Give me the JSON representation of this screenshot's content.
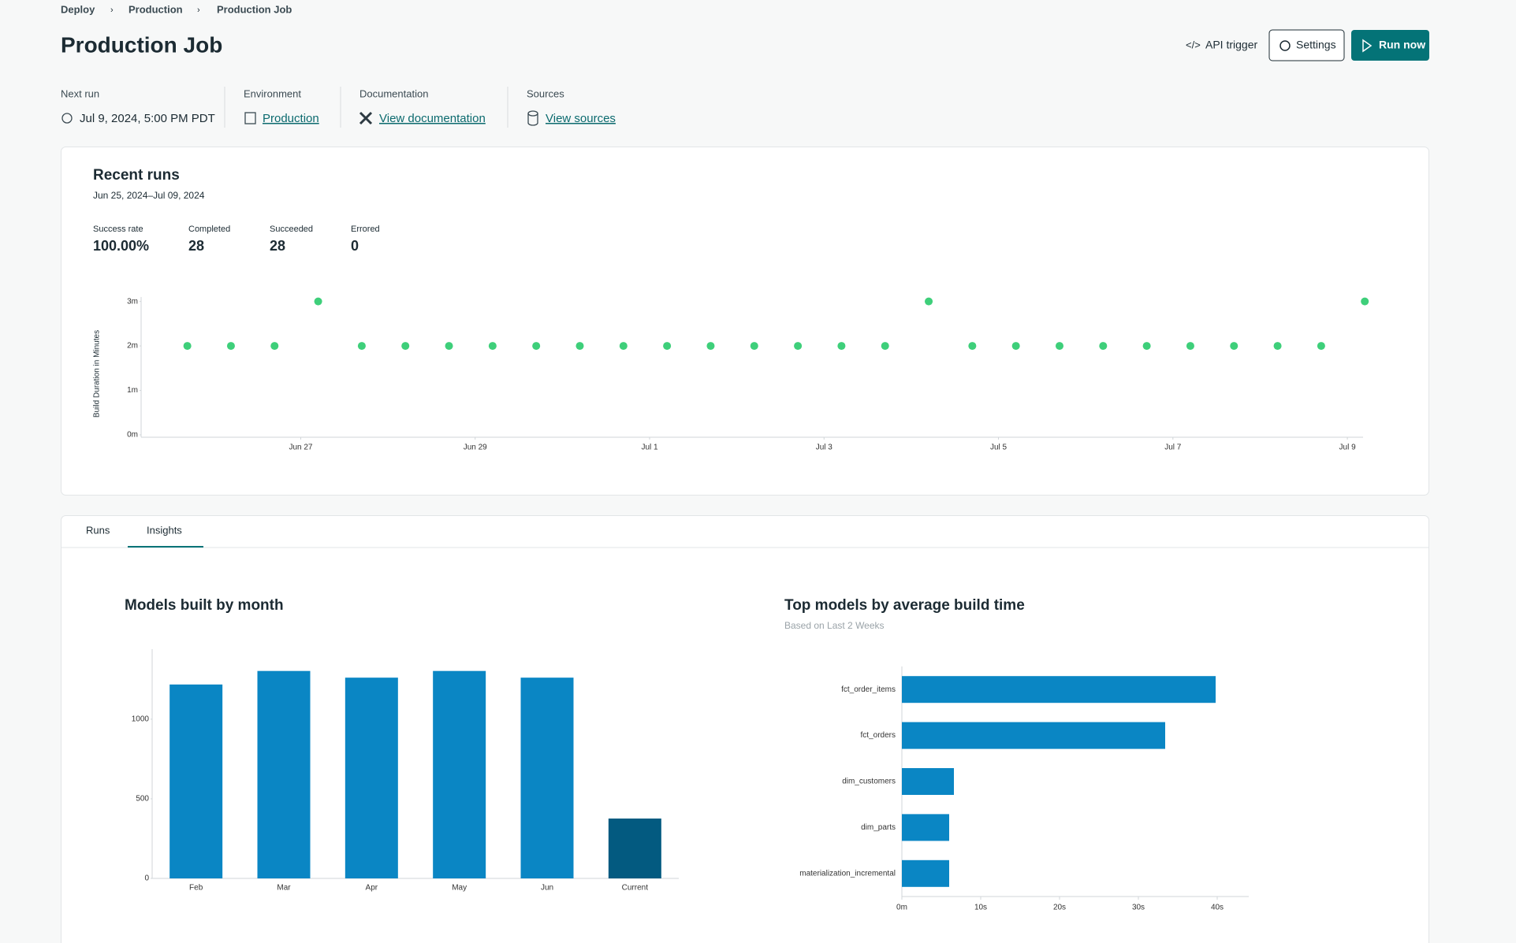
{
  "breadcrumb": [
    "Deploy",
    "Production",
    "Production Job"
  ],
  "header": {
    "title": "Production Job",
    "buttons": [
      "API trigger",
      "Settings",
      "Run now"
    ]
  },
  "info": [
    {
      "label": "Next run",
      "value": "Jul 9, 2024, 5:00 PM PDT"
    },
    {
      "label": "Environment",
      "value": "Production"
    },
    {
      "label": "Documentation",
      "value": "View documentation"
    },
    {
      "label": "Sources",
      "value": "View sources"
    }
  ],
  "recent_runs": {
    "title": "Recent runs",
    "date_range": "Jun 25, 2024–Jul 09, 2024",
    "stats": [
      {
        "label": "Success rate",
        "value": "100.00%"
      },
      {
        "label": "Completed",
        "value": "28"
      },
      {
        "label": "Succeeded",
        "value": "28"
      },
      {
        "label": "Errored",
        "value": "0"
      }
    ]
  },
  "tabs": [
    "Runs",
    "Insights"
  ],
  "chart_data": [
    {
      "type": "scatter",
      "y_label": "Build Duration in Minutes",
      "color": "#3ecf7a",
      "x": [
        25.7,
        26.2,
        26.7,
        27.2,
        27.7,
        28.2,
        28.7,
        29.2,
        29.7,
        30.2,
        30.7,
        31.2,
        31.7,
        32.2,
        32.7,
        33.2,
        33.7,
        34.2,
        34.7,
        35.2,
        35.7,
        36.2,
        36.7,
        37.2,
        37.7,
        38.2,
        38.7,
        39.2
      ],
      "values": [
        2,
        2,
        2,
        3,
        2,
        2,
        2,
        2,
        2,
        2,
        2,
        2,
        2,
        2,
        2,
        2,
        2,
        3,
        2,
        2,
        2,
        2,
        2,
        2,
        2,
        2,
        2,
        3
      ],
      "xlim": [
        25.17,
        39.18
      ],
      "xticks": [
        {
          "value": 27,
          "label": "Jun 27"
        },
        {
          "value": 29,
          "label": "Jun 29"
        },
        {
          "value": 31,
          "label": "Jul 1"
        },
        {
          "value": 33,
          "label": "Jul 3"
        },
        {
          "value": 35,
          "label": "Jul 5"
        },
        {
          "value": 37,
          "label": "Jul 7"
        },
        {
          "value": 39,
          "label": "Jul 9"
        }
      ],
      "ylim": [
        0,
        3.1
      ],
      "yticks": [
        {
          "value": 0,
          "label": "0m"
        },
        {
          "value": 1,
          "label": "1m"
        },
        {
          "value": 2,
          "label": "2m"
        },
        {
          "value": 3,
          "label": "3m"
        }
      ]
    },
    {
      "type": "bar",
      "title": "Models built by month",
      "categories": [
        "Feb",
        "Mar",
        "Apr",
        "May",
        "Jun",
        "Current"
      ],
      "values": [
        1218,
        1303,
        1261,
        1303,
        1261,
        376
      ],
      "colors": [
        "#0a86c4",
        "#0a86c4",
        "#0a86c4",
        "#0a86c4",
        "#0a86c4",
        "#035a80"
      ],
      "ylim": [
        0,
        1440
      ],
      "yticks": [
        0,
        500,
        1000
      ]
    },
    {
      "type": "hbar",
      "title": "Top models by average build time",
      "subtitle": "Based on Last 2 Weeks",
      "color": "#0a86c4",
      "categories": [
        "fct_order_items",
        "fct_orders",
        "dim_customers",
        "dim_parts",
        "materialization_incremental"
      ],
      "values": [
        39.8,
        33.4,
        6.6,
        6.0,
        6.0
      ],
      "xlim": [
        0,
        44
      ],
      "xticks": [
        {
          "value": 0,
          "label": "0m"
        },
        {
          "value": 10,
          "label": "10s"
        },
        {
          "value": 20,
          "label": "20s"
        },
        {
          "value": 30,
          "label": "30s"
        },
        {
          "value": 40,
          "label": "40s"
        }
      ]
    }
  ]
}
